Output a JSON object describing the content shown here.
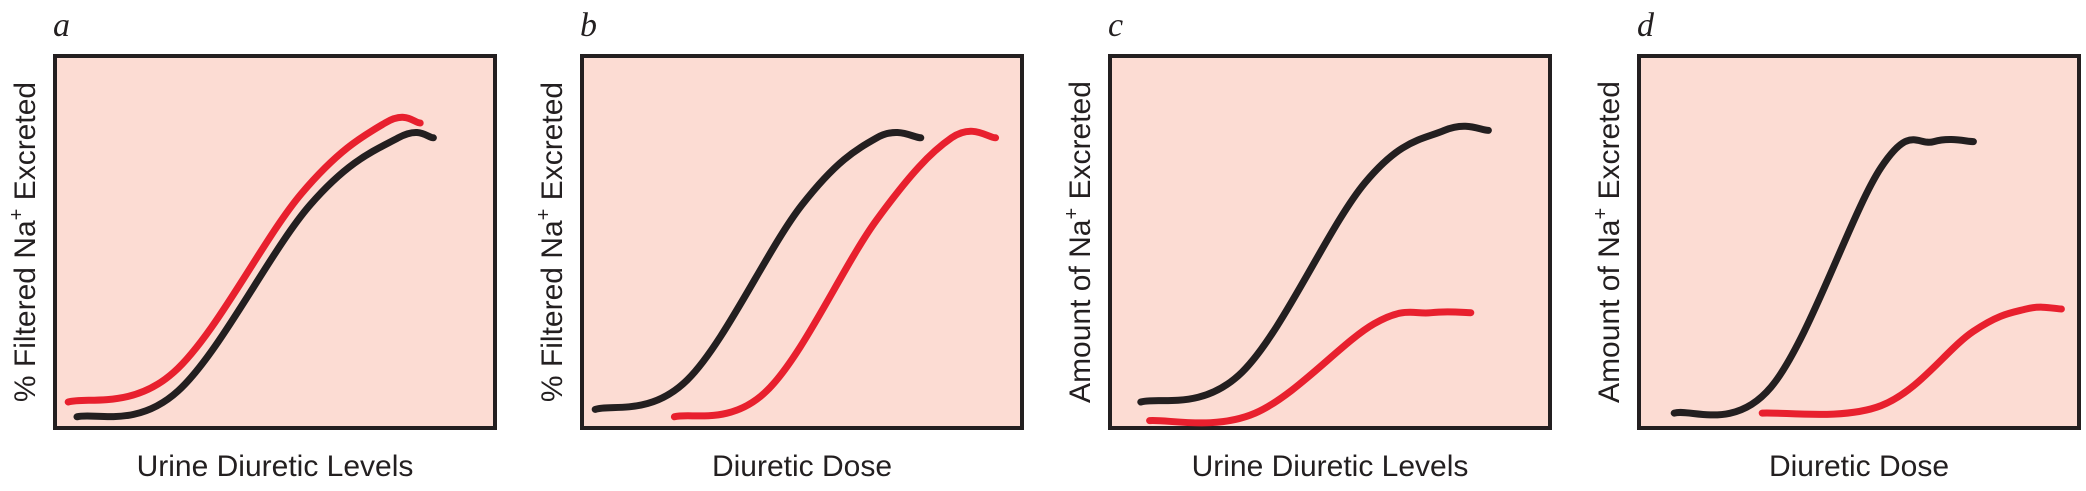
{
  "colors": {
    "background": "#fcdcd3",
    "border": "#231f20",
    "black_curve": "#231f20",
    "red_curve": "#e8202e"
  },
  "chart_data": [
    {
      "panel": "a",
      "type": "line",
      "xlabel": "Urine Diuretic Levels",
      "ylabel_text": "% Filtered Na",
      "ylabel_sup": "+",
      "ylabel_tail": " Excreted",
      "xlim": [
        0,
        1
      ],
      "ylim": [
        0,
        1
      ],
      "grid": false,
      "series": [
        {
          "color": "#231f20",
          "x": [
            0.05,
            0.28,
            0.58,
            0.78,
            0.86
          ],
          "y": [
            0.03,
            0.1,
            0.6,
            0.78,
            0.78
          ]
        },
        {
          "color": "#e8202e",
          "x": [
            0.03,
            0.27,
            0.56,
            0.75,
            0.83
          ],
          "y": [
            0.07,
            0.15,
            0.63,
            0.82,
            0.82
          ]
        }
      ]
    },
    {
      "panel": "b",
      "type": "line",
      "xlabel": "Diuretic Dose",
      "ylabel_text": "% Filtered Na",
      "ylabel_sup": "+",
      "ylabel_tail": " Excreted",
      "xlim": [
        0,
        1
      ],
      "ylim": [
        0,
        1
      ],
      "grid": false,
      "series": [
        {
          "color": "#231f20",
          "x": [
            0.03,
            0.24,
            0.5,
            0.67,
            0.77
          ],
          "y": [
            0.05,
            0.13,
            0.6,
            0.78,
            0.78
          ]
        },
        {
          "color": "#e8202e",
          "x": [
            0.21,
            0.42,
            0.67,
            0.84,
            0.94
          ],
          "y": [
            0.03,
            0.1,
            0.56,
            0.78,
            0.78
          ]
        }
      ]
    },
    {
      "panel": "c",
      "type": "line",
      "xlabel": "Urine Diuretic Levels",
      "ylabel_text": "Amount of Na",
      "ylabel_sup": "+",
      "ylabel_tail": " Excreted",
      "xlim": [
        0,
        1
      ],
      "ylim": [
        0,
        1
      ],
      "grid": false,
      "series": [
        {
          "color": "#231f20",
          "x": [
            0.07,
            0.3,
            0.58,
            0.76,
            0.86
          ],
          "y": [
            0.07,
            0.15,
            0.66,
            0.8,
            0.8
          ]
        },
        {
          "color": "#e8202e",
          "x": [
            0.09,
            0.33,
            0.6,
            0.73,
            0.82
          ],
          "y": [
            0.02,
            0.04,
            0.28,
            0.31,
            0.31
          ]
        }
      ]
    },
    {
      "panel": "d",
      "type": "line",
      "xlabel": "Diuretic Dose",
      "ylabel_text": "Amount of Na",
      "ylabel_sup": "+",
      "ylabel_tail": " Excreted",
      "xlim": [
        0,
        1
      ],
      "ylim": [
        0,
        1
      ],
      "grid": false,
      "series": [
        {
          "color": "#231f20",
          "x": [
            0.08,
            0.3,
            0.55,
            0.67,
            0.76
          ],
          "y": [
            0.04,
            0.11,
            0.7,
            0.77,
            0.77
          ]
        },
        {
          "color": "#e8202e",
          "x": [
            0.28,
            0.55,
            0.76,
            0.88,
            0.96
          ],
          "y": [
            0.04,
            0.06,
            0.26,
            0.32,
            0.32
          ]
        }
      ]
    }
  ]
}
